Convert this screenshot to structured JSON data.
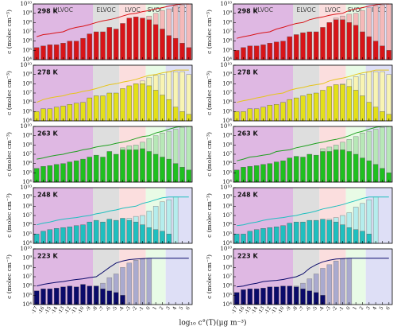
{
  "chart_data": {
    "type": "bar",
    "log_scale": true,
    "ylabel": "c (molec cm⁻³)",
    "xlabel": "log₁₀ c°(T)(μg m⁻³)",
    "x": [
      -17,
      -16,
      -15,
      -14,
      -13,
      -12,
      -11,
      -10,
      -9,
      -8,
      -7,
      -6,
      -5,
      -4,
      -3,
      -2,
      -1,
      0,
      1,
      2,
      3,
      4,
      5,
      6
    ],
    "xlim": [
      -17.5,
      6.5
    ],
    "xticks": [
      -17,
      -16,
      -15,
      -14,
      -13,
      -12,
      -11,
      -10,
      -9,
      -8,
      -7,
      -6,
      -5,
      -4,
      -3,
      -2,
      -1,
      0,
      1,
      2,
      3,
      4,
      5,
      6
    ],
    "ylim": [
      10000,
      10000000000
    ],
    "yticks": [
      {
        "value": 10000,
        "label": "10⁴"
      },
      {
        "value": 100000,
        "label": "10⁵"
      },
      {
        "value": 1000000,
        "label": "10⁶"
      },
      {
        "value": 10000000,
        "label": "10⁷"
      },
      {
        "value": 100000000,
        "label": "10⁸"
      },
      {
        "value": 1000000000,
        "label": "10⁹"
      },
      {
        "value": 10000000000,
        "label": "10¹⁰"
      }
    ],
    "regions": [
      {
        "label": "ULVOC",
        "from": -17.5,
        "to": -8.5,
        "color": "#dfb8e3"
      },
      {
        "label": "ELVOC",
        "from": -8.5,
        "to": -4.5,
        "color": "#dedede"
      },
      {
        "label": "LVOC",
        "from": -4.5,
        "to": -0.5,
        "color": "#fbdede"
      },
      {
        "label": "SVOC",
        "from": -0.5,
        "to": 2.5,
        "color": "#e8fbe6"
      },
      {
        "label": "IVOC",
        "from": 2.5,
        "to": 6.5,
        "color": "#dedff6"
      }
    ],
    "panels": [
      {
        "label": "298 K",
        "particle_color": "#d81418",
        "gas_color": "#f5b9b9",
        "curve_color": "#d81418",
        "particle": [
          200000.0,
          300000.0,
          400000.0,
          400000.0,
          600000.0,
          1000000.0,
          1000000.0,
          2000000.0,
          6000000.0,
          10000000.0,
          10000000.0,
          30000000.0,
          20000000.0,
          80000000.0,
          300000000.0,
          400000000.0,
          300000000.0,
          200000000.0,
          60000000.0,
          20000000.0,
          4000000.0,
          2000000.0,
          600000.0,
          200000.0
        ],
        "gas": [
          null,
          null,
          null,
          null,
          null,
          null,
          null,
          null,
          null,
          null,
          null,
          null,
          null,
          null,
          null,
          null,
          null,
          500000000.0,
          1000000000.0,
          2000000000.0,
          3000000000.0,
          6000000000.0,
          8000000000.0,
          10000000000.0
        ],
        "curve": [
          3000000.0,
          5000000.0,
          6000000.0,
          8000000.0,
          10000000.0,
          20000000.0,
          30000000.0,
          40000000.0,
          60000000.0,
          100000000.0,
          150000000.0,
          200000000.0,
          300000000.0,
          500000000.0,
          800000000.0,
          1000000000.0,
          1500000000.0,
          2000000000.0,
          3000000000.0,
          4000000000.0,
          6000000000.0,
          8000000000.0,
          10000000000.0,
          10000000000.0
        ]
      },
      {
        "label": "298 K",
        "particle_color": "#d81418",
        "gas_color": "#f5b9b9",
        "curve_color": "#d81418",
        "particle": [
          100000.0,
          200000.0,
          300000.0,
          300000.0,
          400000.0,
          600000.0,
          800000.0,
          1000000.0,
          3000000.0,
          5000000.0,
          8000000.0,
          10000000.0,
          10000000.0,
          30000000.0,
          100000000.0,
          200000000.0,
          200000000.0,
          100000000.0,
          50000000.0,
          10000000.0,
          3000000.0,
          1000000.0,
          300000.0,
          100000.0
        ],
        "gas": [
          null,
          null,
          null,
          null,
          null,
          null,
          null,
          null,
          null,
          null,
          null,
          null,
          null,
          null,
          null,
          300000000.0,
          500000000.0,
          800000000.0,
          1000000000.0,
          2000000000.0,
          4000000000.0,
          6000000000.0,
          8000000000.0,
          10000000000.0
        ],
        "curve": [
          2000000.0,
          3000000.0,
          4000000.0,
          6000000.0,
          8000000.0,
          10000000.0,
          20000000.0,
          30000000.0,
          50000000.0,
          80000000.0,
          100000000.0,
          200000000.0,
          300000000.0,
          400000000.0,
          600000000.0,
          800000000.0,
          1000000000.0,
          2000000000.0,
          3000000000.0,
          4000000000.0,
          6000000000.0,
          8000000000.0,
          10000000000.0,
          10000000000.0
        ]
      },
      {
        "label": "278 K",
        "particle_color": "#e3e019",
        "gas_color": "#f8f4b3",
        "curve_color": "#e6c419",
        "particle": [
          100000.0,
          200000.0,
          200000.0,
          300000.0,
          400000.0,
          600000.0,
          800000.0,
          1000000.0,
          3000000.0,
          5000000.0,
          5000000.0,
          10000000.0,
          10000000.0,
          30000000.0,
          60000000.0,
          100000000.0,
          100000000.0,
          60000000.0,
          20000000.0,
          6000000.0,
          2000000.0,
          300000.0,
          100000.0,
          50000.0
        ],
        "gas": [
          null,
          null,
          null,
          null,
          null,
          null,
          null,
          null,
          null,
          null,
          null,
          null,
          null,
          null,
          null,
          null,
          200000000.0,
          500000000.0,
          800000000.0,
          1000000000.0,
          2000000000.0,
          2000000000.0,
          2000000000.0,
          1000000000.0
        ],
        "curve": [
          1000000.0,
          2000000.0,
          3000000.0,
          4000000.0,
          5000000.0,
          8000000.0,
          10000000.0,
          15000000.0,
          20000000.0,
          30000000.0,
          50000000.0,
          80000000.0,
          100000000.0,
          150000000.0,
          200000000.0,
          300000000.0,
          500000000.0,
          800000000.0,
          1000000000.0,
          1500000000.0,
          2000000000.0,
          3000000000.0,
          3000000000.0,
          3000000000.0
        ]
      },
      {
        "label": "278 K",
        "particle_color": "#e3e019",
        "gas_color": "#f8f4b3",
        "curve_color": "#e6c419",
        "particle": [
          100000.0,
          100000.0,
          200000.0,
          200000.0,
          300000.0,
          500000.0,
          600000.0,
          1000000.0,
          2000000.0,
          3000000.0,
          5000000.0,
          8000000.0,
          10000000.0,
          20000000.0,
          50000000.0,
          80000000.0,
          80000000.0,
          50000000.0,
          20000000.0,
          5000000.0,
          1000000.0,
          300000.0,
          100000.0,
          50000.0
        ],
        "gas": [
          null,
          null,
          null,
          null,
          null,
          null,
          null,
          null,
          null,
          null,
          null,
          null,
          null,
          null,
          null,
          null,
          100000000.0,
          300000000.0,
          600000000.0,
          1000000000.0,
          2000000000.0,
          2000000000.0,
          2000000000.0,
          1000000000.0
        ],
        "curve": [
          1000000.0,
          1500000.0,
          2000000.0,
          3000000.0,
          4000000.0,
          6000000.0,
          8000000.0,
          10000000.0,
          20000000.0,
          30000000.0,
          40000000.0,
          60000000.0,
          80000000.0,
          100000000.0,
          200000000.0,
          300000000.0,
          400000000.0,
          600000000.0,
          1000000000.0,
          1500000000.0,
          2000000000.0,
          3000000000.0,
          3000000000.0,
          3000000000.0
        ]
      },
      {
        "label": "263 K",
        "particle_color": "#1fc01f",
        "gas_color": "#b7e8b7",
        "curve_color": "#1fa01f",
        "particle": [
          300000.0,
          500000.0,
          600000.0,
          800000.0,
          1000000.0,
          1500000.0,
          2000000.0,
          3000000.0,
          5000000.0,
          8000000.0,
          5000000.0,
          20000000.0,
          10000000.0,
          30000000.0,
          30000000.0,
          30000000.0,
          40000000.0,
          20000000.0,
          10000000.0,
          5000000.0,
          3000000.0,
          1000000.0,
          400000.0,
          200000.0
        ],
        "gas": [
          null,
          null,
          null,
          null,
          null,
          null,
          null,
          null,
          null,
          null,
          null,
          null,
          null,
          50000000.0,
          80000000.0,
          100000000.0,
          200000000.0,
          500000000.0,
          1000000000.0,
          2000000000.0,
          3000000000.0,
          5000000000.0,
          8000000000.0,
          10000000000.0
        ],
        "curve": [
          3000000.0,
          4000000.0,
          6000000.0,
          8000000.0,
          10000000.0,
          15000000.0,
          20000000.0,
          30000000.0,
          40000000.0,
          60000000.0,
          80000000.0,
          100000000.0,
          150000000.0,
          200000000.0,
          300000000.0,
          500000000.0,
          800000000.0,
          1000000000.0,
          2000000000.0,
          3000000000.0,
          5000000000.0,
          8000000000.0,
          10000000000.0,
          10000000000.0
        ]
      },
      {
        "label": "263 K",
        "particle_color": "#1fc01f",
        "gas_color": "#b7e8b7",
        "curve_color": "#1fa01f",
        "particle": [
          200000.0,
          400000.0,
          500000.0,
          600000.0,
          800000.0,
          1000000.0,
          1500000.0,
          2000000.0,
          4000000.0,
          6000000.0,
          5000000.0,
          10000000.0,
          8000000.0,
          20000000.0,
          20000000.0,
          30000000.0,
          30000000.0,
          20000000.0,
          10000000.0,
          4000000.0,
          2000000.0,
          800000.0,
          300000.0,
          100000.0
        ],
        "gas": [
          null,
          null,
          null,
          null,
          null,
          null,
          null,
          null,
          null,
          null,
          null,
          null,
          null,
          40000000.0,
          60000000.0,
          100000000.0,
          200000000.0,
          400000000.0,
          800000000.0,
          2000000000.0,
          3000000000.0,
          5000000000.0,
          8000000000.0,
          10000000000.0
        ],
        "curve": [
          2000000.0,
          3000000.0,
          5000000.0,
          6000000.0,
          8000000.0,
          10000000.0,
          20000000.0,
          25000000.0,
          30000000.0,
          50000000.0,
          70000000.0,
          100000000.0,
          150000000.0,
          200000000.0,
          300000000.0,
          400000000.0,
          600000000.0,
          1000000000.0,
          2000000000.0,
          3000000000.0,
          5000000000.0,
          8000000000.0,
          10000000000.0,
          10000000000.0
        ]
      },
      {
        "label": "248 K",
        "particle_color": "#1fbfbf",
        "gas_color": "#b5eded",
        "curve_color": "#1fbfbf",
        "particle": [
          100000.0,
          200000.0,
          300000.0,
          400000.0,
          500000.0,
          600000.0,
          800000.0,
          1000000.0,
          2000000.0,
          3000000.0,
          2000000.0,
          4000000.0,
          3000000.0,
          5000000.0,
          3000000.0,
          2000000.0,
          1000000.0,
          500000.0,
          300000.0,
          200000.0,
          100000.0,
          null,
          null,
          null
        ],
        "gas": [
          null,
          null,
          null,
          null,
          null,
          null,
          null,
          null,
          null,
          null,
          null,
          null,
          null,
          null,
          5000000.0,
          8000000.0,
          10000000.0,
          30000000.0,
          100000000.0,
          300000000.0,
          500000000.0,
          1000000000.0,
          null,
          null
        ],
        "curve": [
          1000000.0,
          1500000.0,
          2000000.0,
          3000000.0,
          4000000.0,
          5000000.0,
          6000000.0,
          8000000.0,
          10000000.0,
          15000000.0,
          20000000.0,
          30000000.0,
          40000000.0,
          60000000.0,
          80000000.0,
          100000000.0,
          200000000.0,
          300000000.0,
          500000000.0,
          800000000.0,
          1000000000.0,
          1000000000.0,
          1000000000.0,
          1000000000.0
        ]
      },
      {
        "label": "248 K",
        "particle_color": "#1fbfbf",
        "gas_color": "#b5eded",
        "curve_color": "#1fbfbf",
        "particle": [
          100000.0,
          100000.0,
          200000.0,
          300000.0,
          400000.0,
          500000.0,
          600000.0,
          800000.0,
          1500000.0,
          2000000.0,
          2000000.0,
          3000000.0,
          3000000.0,
          4000000.0,
          3000000.0,
          2000000.0,
          1000000.0,
          500000.0,
          300000.0,
          200000.0,
          100000.0,
          null,
          null,
          null
        ],
        "gas": [
          null,
          null,
          null,
          null,
          null,
          null,
          null,
          null,
          null,
          null,
          null,
          null,
          null,
          null,
          4000000.0,
          6000000.0,
          10000000.0,
          20000000.0,
          80000000.0,
          200000000.0,
          500000000.0,
          1000000000.0,
          null,
          null
        ],
        "curve": [
          800000.0,
          1000000.0,
          1500000.0,
          2000000.0,
          3000000.0,
          4000000.0,
          5000000.0,
          6000000.0,
          8000000.0,
          10000000.0,
          15000000.0,
          20000000.0,
          30000000.0,
          50000000.0,
          70000000.0,
          100000000.0,
          150000000.0,
          250000000.0,
          400000000.0,
          700000000.0,
          1000000000.0,
          1000000000.0,
          1000000000.0,
          1000000000.0
        ]
      },
      {
        "label": "223 K",
        "particle_color": "#0a0a6a",
        "gas_color": "#aaaacf",
        "curve_color": "#0a0a6a",
        "particle": [
          300000.0,
          500000.0,
          500000.0,
          600000.0,
          800000.0,
          1000000.0,
          800000.0,
          1500000.0,
          1000000.0,
          1000000.0,
          500000.0,
          300000.0,
          200000.0,
          100000.0,
          null,
          null,
          null,
          null,
          null,
          null,
          null,
          null,
          null,
          null
        ],
        "gas": [
          null,
          null,
          null,
          null,
          null,
          null,
          null,
          null,
          null,
          1000000.0,
          2000000.0,
          8000000.0,
          20000000.0,
          100000000.0,
          300000000.0,
          600000000.0,
          800000000.0,
          1000000000.0,
          null,
          null,
          null,
          null,
          null,
          null
        ],
        "curve": [
          1000000.0,
          1500000.0,
          2000000.0,
          2500000.0,
          3000000.0,
          4000000.0,
          5000000.0,
          6000000.0,
          8000000.0,
          10000000.0,
          30000000.0,
          100000000.0,
          300000000.0,
          500000000.0,
          700000000.0,
          800000000.0,
          900000000.0,
          1000000000.0,
          1000000000.0,
          1000000000.0,
          1000000000.0,
          1000000000.0,
          1000000000.0,
          1000000000.0
        ]
      },
      {
        "label": "223 K",
        "particle_color": "#0a0a6a",
        "gas_color": "#aaaacf",
        "curve_color": "#0a0a6a",
        "particle": [
          200000.0,
          400000.0,
          500000.0,
          500000.0,
          600000.0,
          800000.0,
          800000.0,
          1000000.0,
          1000000.0,
          800000.0,
          500000.0,
          300000.0,
          200000.0,
          100000.0,
          null,
          null,
          null,
          null,
          null,
          null,
          null,
          null,
          null,
          null
        ],
        "gas": [
          null,
          null,
          null,
          null,
          null,
          null,
          null,
          null,
          null,
          1000000.0,
          2000000.0,
          6000000.0,
          20000000.0,
          80000000.0,
          200000000.0,
          500000000.0,
          800000000.0,
          1000000000.0,
          null,
          null,
          null,
          null,
          null,
          null
        ],
        "curve": [
          800000.0,
          1000000.0,
          1500000.0,
          2000000.0,
          3000000.0,
          3500000.0,
          4000000.0,
          5000000.0,
          7000000.0,
          10000000.0,
          20000000.0,
          80000000.0,
          200000000.0,
          400000000.0,
          600000000.0,
          800000000.0,
          900000000.0,
          1000000000.0,
          1000000000.0,
          1000000000.0,
          1000000000.0,
          1000000000.0,
          1000000000.0,
          1000000000.0
        ]
      }
    ]
  }
}
